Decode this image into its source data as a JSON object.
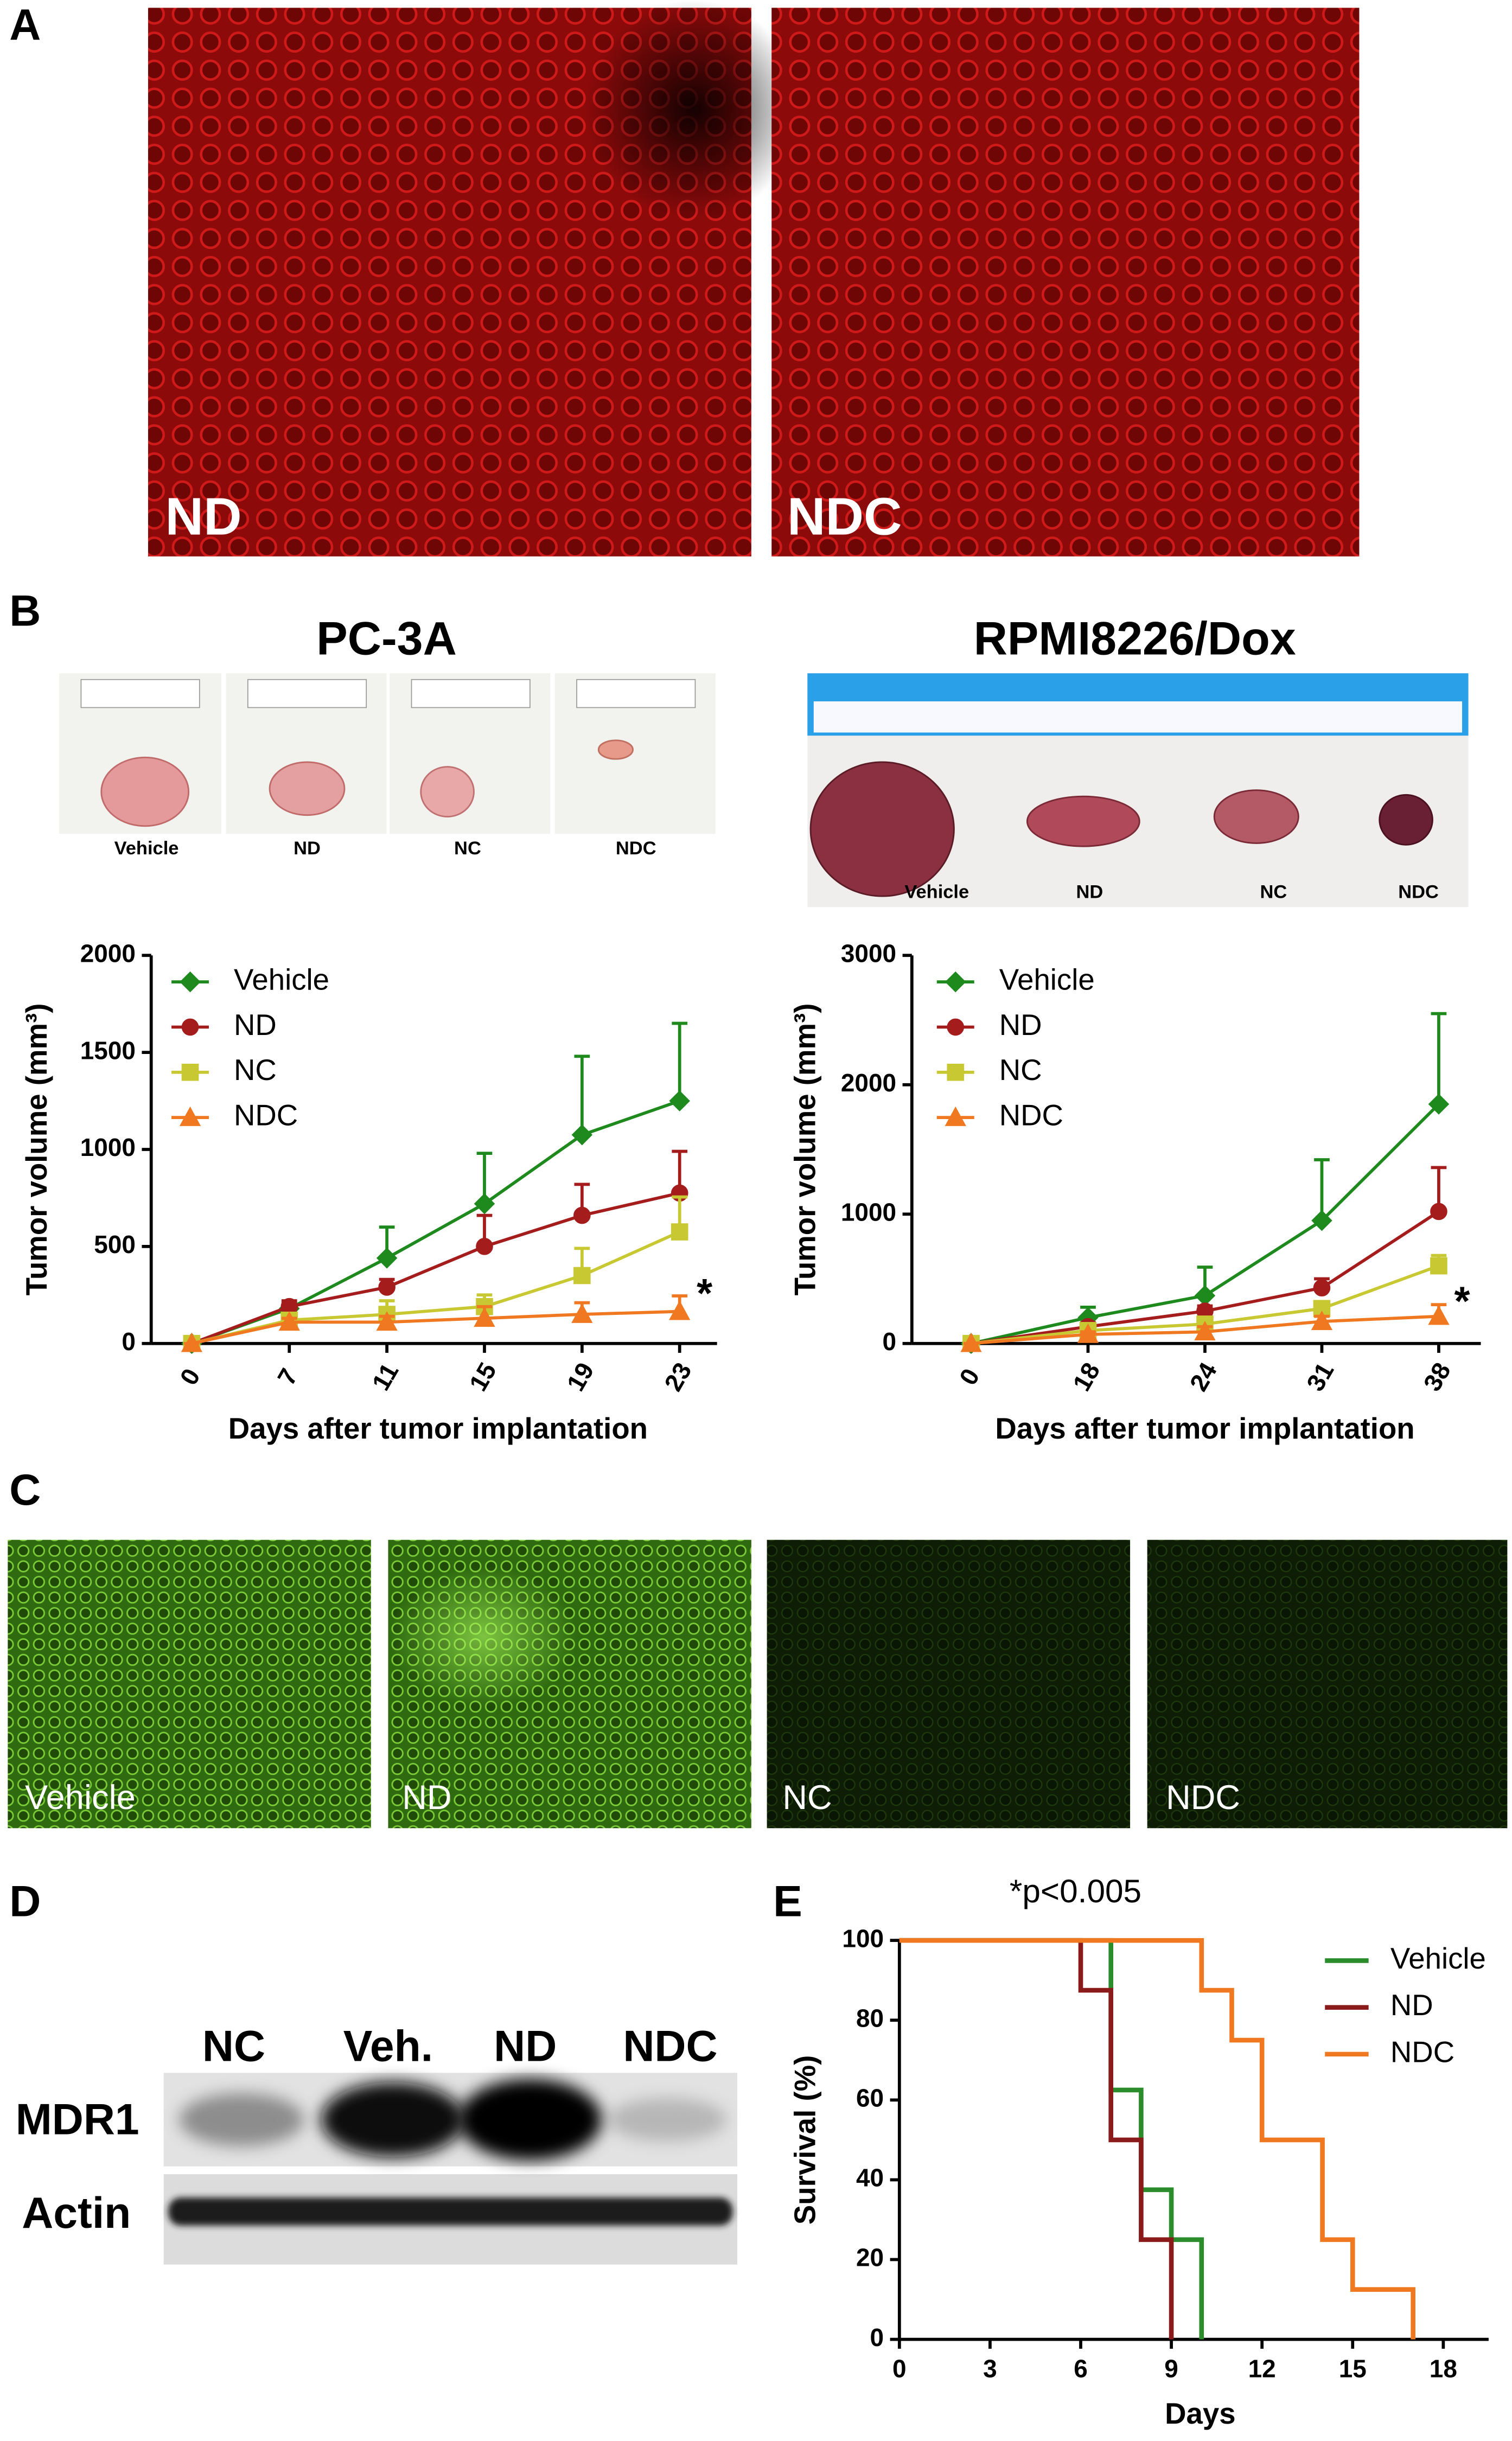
{
  "panel_labels": [
    "A",
    "B",
    "C",
    "D",
    "E"
  ],
  "panel_a": {
    "labels": [
      "ND",
      "NDC"
    ]
  },
  "panel_b_photos": {
    "pc3a": [
      "Vehicle",
      "ND",
      "NC",
      "NDC"
    ],
    "rpmi": [
      "Vehicle",
      "ND",
      "NC",
      "NDC"
    ]
  },
  "panel_c": {
    "labels": [
      "Vehicle",
      "ND",
      "NC",
      "NDC"
    ]
  },
  "panel_d": {
    "lanes": [
      "NC",
      "Veh.",
      "ND",
      "NDC"
    ],
    "rows": [
      "MDR1",
      "Actin"
    ]
  },
  "chart_data": [
    {
      "type": "line",
      "title": "PC-3A",
      "xlabel": "Days after tumor implantation",
      "ylabel": "Tumor volume (mm³)",
      "categories": [
        "0",
        "7",
        "11",
        "15",
        "19",
        "23"
      ],
      "ylim": [
        0,
        2000
      ],
      "yticks": [
        0,
        500,
        1000,
        1500,
        2000
      ],
      "grid": false,
      "legend": "upper left",
      "annotation": "*",
      "series": [
        {
          "name": "Vehicle",
          "color": "#1e8a1e",
          "marker": "diamond",
          "values": [
            0,
            180,
            440,
            720,
            1075,
            1250
          ],
          "errors": [
            0,
            30,
            160,
            260,
            405,
            400
          ]
        },
        {
          "name": "ND",
          "color": "#a51c1c",
          "marker": "circle",
          "values": [
            0,
            190,
            290,
            500,
            660,
            775
          ],
          "errors": [
            0,
            30,
            40,
            160,
            160,
            215
          ]
        },
        {
          "name": "NC",
          "color": "#c8c832",
          "marker": "square",
          "values": [
            0,
            120,
            150,
            190,
            350,
            575
          ],
          "errors": [
            0,
            20,
            70,
            60,
            140,
            180
          ]
        },
        {
          "name": "NDC",
          "color": "#f07820",
          "marker": "triangle",
          "values": [
            0,
            110,
            110,
            130,
            150,
            165
          ],
          "errors": [
            0,
            20,
            30,
            60,
            60,
            80
          ]
        }
      ]
    },
    {
      "type": "line",
      "title": "RPMI8226/Dox",
      "xlabel": "Days after tumor implantation",
      "ylabel": "Tumor volume (mm³)",
      "categories": [
        "0",
        "18",
        "24",
        "31",
        "38"
      ],
      "ylim": [
        0,
        3000
      ],
      "yticks": [
        0,
        1000,
        2000,
        3000
      ],
      "grid": false,
      "legend": "upper left",
      "annotation": "*",
      "series": [
        {
          "name": "Vehicle",
          "color": "#1e8a1e",
          "marker": "diamond",
          "values": [
            0,
            200,
            370,
            950,
            1850
          ],
          "errors": [
            0,
            80,
            220,
            470,
            700
          ]
        },
        {
          "name": "ND",
          "color": "#a51c1c",
          "marker": "circle",
          "values": [
            0,
            130,
            250,
            430,
            1020
          ],
          "errors": [
            0,
            30,
            40,
            70,
            340
          ]
        },
        {
          "name": "NC",
          "color": "#c8c832",
          "marker": "square",
          "values": [
            0,
            100,
            150,
            270,
            600
          ],
          "errors": [
            0,
            30,
            40,
            40,
            80
          ]
        },
        {
          "name": "NDC",
          "color": "#f07820",
          "marker": "triangle",
          "values": [
            0,
            70,
            90,
            170,
            210
          ],
          "errors": [
            0,
            20,
            40,
            40,
            90
          ]
        }
      ]
    },
    {
      "type": "step",
      "xlabel": "Days",
      "ylabel": "Survival (%)",
      "annotation": "*p<0.005",
      "xlim": [
        0,
        19.5
      ],
      "xticks": [
        0,
        3,
        6,
        9,
        12,
        15,
        18
      ],
      "ylim": [
        0,
        100
      ],
      "yticks": [
        0,
        20,
        40,
        60,
        80,
        100
      ],
      "grid": false,
      "legend": "upper right",
      "series": [
        {
          "name": "Vehicle",
          "color": "#2a8c2a",
          "x": [
            0,
            7,
            8,
            9,
            10
          ],
          "values": [
            100,
            62.5,
            37.5,
            25,
            0
          ]
        },
        {
          "name": "ND",
          "color": "#8b1a1a",
          "x": [
            0,
            6,
            7,
            8,
            9
          ],
          "values": [
            100,
            87.5,
            50,
            25,
            0
          ]
        },
        {
          "name": "NDC",
          "color": "#f07820",
          "x": [
            0,
            10,
            11,
            12,
            14,
            15,
            17
          ],
          "values": [
            100,
            87.5,
            75,
            50,
            25,
            12.5,
            0
          ]
        }
      ]
    }
  ]
}
